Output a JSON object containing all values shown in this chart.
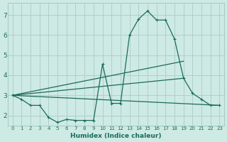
{
  "background_color": "#ceeae4",
  "grid_color": "#aaccc6",
  "line_color": "#1a6b5a",
  "marker": "+",
  "xlabel": "Humidex (Indice chaleur)",
  "xlim": [
    -0.5,
    23.5
  ],
  "ylim": [
    1.5,
    7.6
  ],
  "xticks": [
    0,
    1,
    2,
    3,
    4,
    5,
    6,
    7,
    8,
    9,
    10,
    11,
    12,
    13,
    14,
    15,
    16,
    17,
    18,
    19,
    20,
    21,
    22,
    23
  ],
  "yticks": [
    2,
    3,
    4,
    5,
    6,
    7
  ],
  "series": [
    {
      "x": [
        0,
        1,
        2,
        3,
        4,
        5,
        6,
        7,
        8,
        9,
        10,
        11,
        12,
        13,
        14,
        15,
        16,
        17,
        18,
        19,
        20,
        21,
        22,
        23
      ],
      "y": [
        3.0,
        2.8,
        2.5,
        2.5,
        1.9,
        1.65,
        1.8,
        1.75,
        1.75,
        1.75,
        4.55,
        2.6,
        2.6,
        6.0,
        6.8,
        7.2,
        6.75,
        6.75,
        5.8,
        3.85,
        3.1,
        2.8,
        2.5,
        2.5
      ],
      "has_markers": true
    },
    {
      "x": [
        0,
        23
      ],
      "y": [
        3.0,
        2.5
      ],
      "has_markers": false
    },
    {
      "x": [
        0,
        19
      ],
      "y": [
        3.0,
        3.85
      ],
      "has_markers": false
    },
    {
      "x": [
        0,
        19
      ],
      "y": [
        3.0,
        4.7
      ],
      "has_markers": false
    }
  ]
}
